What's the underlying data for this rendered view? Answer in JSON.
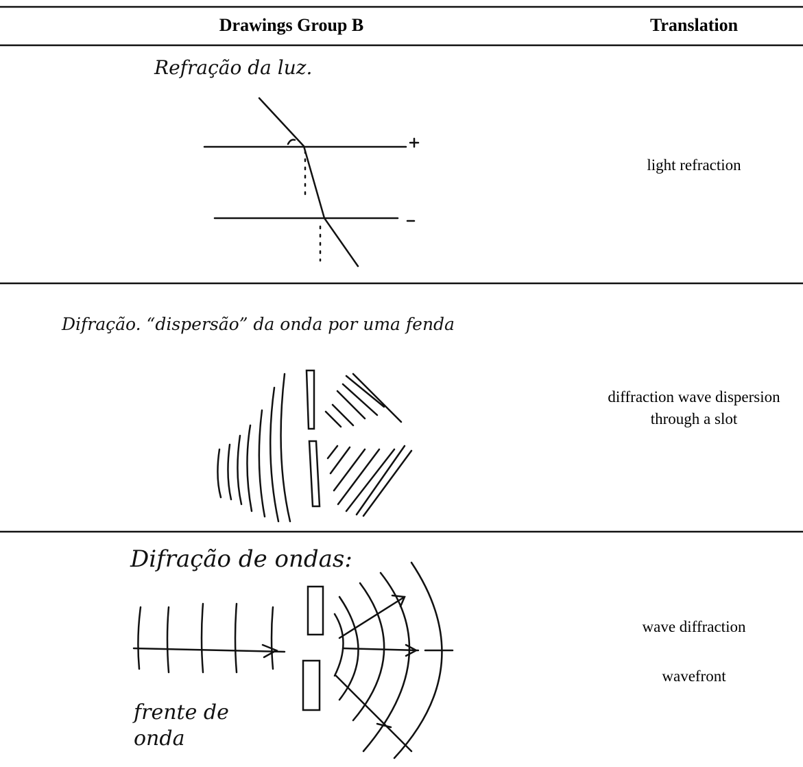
{
  "table": {
    "header": [
      "Drawings Group B",
      "Translation"
    ],
    "rows": [
      {
        "drawing_text": [
          "Refração da luz."
        ],
        "translation": [
          "light refraction"
        ]
      },
      {
        "drawing_text": [
          "Difração. “dispersão” da onda por uma fenda"
        ],
        "translation": [
          "diffraction wave dispersion through a slot"
        ]
      },
      {
        "drawing_text": [
          "Difração de ondas:",
          "frente de onda"
        ],
        "translation": [
          "wave diffraction",
          "wavefront"
        ]
      }
    ]
  }
}
